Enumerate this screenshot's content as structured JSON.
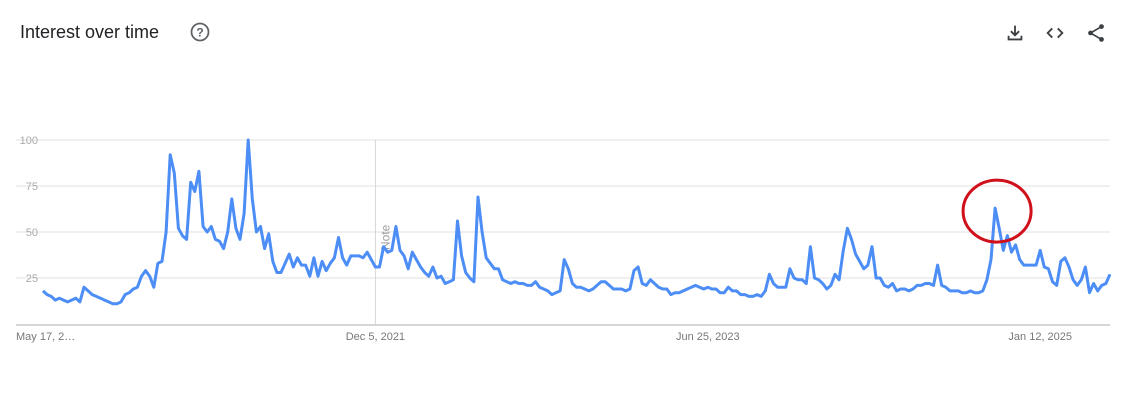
{
  "header": {
    "title": "Interest over time",
    "icons": [
      "help-icon",
      "download-icon",
      "embed-code-icon",
      "share-icon"
    ]
  },
  "colors": {
    "line": "#4c8df6",
    "grid": "#e0e0e0",
    "annotation": "#d0101b",
    "axis_text": "#9e9e9e"
  },
  "chart_data": {
    "type": "line",
    "title": "Interest over time",
    "xlabel": "",
    "ylabel": "",
    "ylim": [
      0,
      100
    ],
    "yticks": [
      25,
      50,
      75,
      100
    ],
    "grid": true,
    "x_start": "2020-05-17",
    "x_interval": "weekly",
    "xtick_labels": [
      {
        "label": "May 17, 2…",
        "date": "2020-05-17"
      },
      {
        "label": "Dec 5, 2021",
        "date": "2021-12-05"
      },
      {
        "label": "Jun 25, 2023",
        "date": "2023-06-25"
      },
      {
        "label": "Jan 12, 2025",
        "date": "2025-01-12"
      }
    ],
    "note_marker": {
      "label": "Note",
      "date": "2021-12-05"
    },
    "annotation": {
      "shape": "red circle",
      "around": "peak of 63 near late 2024"
    },
    "series": [
      {
        "values": [
          18,
          16,
          15,
          13,
          14,
          13,
          12,
          13,
          14,
          12,
          20,
          18,
          16,
          15,
          14,
          13,
          12,
          11,
          11,
          12,
          16,
          17,
          19,
          20,
          26,
          29,
          26,
          20,
          33,
          34,
          50,
          92,
          82,
          52,
          48,
          46,
          77,
          72,
          83,
          53,
          50,
          53,
          46,
          45,
          41,
          50,
          68,
          52,
          46,
          60,
          100,
          68,
          50,
          53,
          41,
          49,
          34,
          28,
          28,
          33,
          38,
          31,
          36,
          32,
          32,
          26,
          36,
          26,
          34,
          29,
          33,
          36,
          47,
          36,
          32,
          37,
          37,
          37,
          36,
          39,
          35,
          31,
          31,
          42,
          39,
          40,
          53,
          40,
          37,
          30,
          39,
          35,
          31,
          28,
          26,
          31,
          25,
          26,
          22,
          23,
          24,
          56,
          37,
          28,
          25,
          23,
          69,
          50,
          36,
          33,
          30,
          30,
          24,
          23,
          22,
          23,
          22,
          22,
          21,
          21,
          23,
          20,
          19,
          18,
          16,
          17,
          18,
          35,
          30,
          22,
          20,
          20,
          19,
          18,
          19,
          21,
          23,
          23,
          21,
          19,
          19,
          19,
          18,
          19,
          29,
          31,
          22,
          21,
          24,
          22,
          20,
          19,
          19,
          16,
          17,
          17,
          18,
          19,
          20,
          21,
          20,
          19,
          20,
          19,
          19,
          17,
          17,
          20,
          18,
          18,
          16,
          16,
          15,
          15,
          16,
          15,
          18,
          27,
          22,
          20,
          20,
          20,
          30,
          25,
          24,
          24,
          22,
          42,
          25,
          24,
          22,
          19,
          21,
          27,
          24,
          40,
          52,
          46,
          38,
          34,
          30,
          32,
          42,
          25,
          25,
          21,
          20,
          22,
          18,
          19,
          19,
          18,
          19,
          21,
          21,
          22,
          22,
          21,
          32,
          21,
          20,
          18,
          18,
          18,
          17,
          17,
          18,
          17,
          17,
          18,
          24,
          35,
          63,
          52,
          40,
          48,
          39,
          43,
          35,
          32,
          32,
          32,
          32,
          40,
          31,
          30,
          23,
          21,
          34,
          36,
          31,
          24,
          21,
          24,
          31,
          17,
          22,
          18,
          21,
          22,
          27
        ]
      }
    ]
  }
}
